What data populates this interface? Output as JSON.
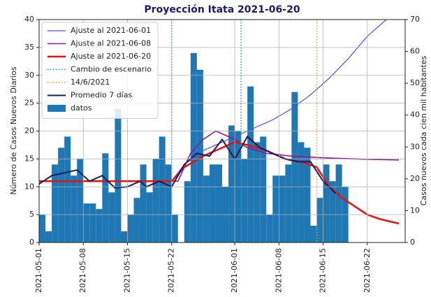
{
  "chart_data": {
    "type": "bar",
    "title": "Proyección Itata 2021-06-20",
    "y_label": "Número de Casos Nuevos Diarios",
    "y2_label": "Casos nuevos cada cien mil habitantes",
    "xlim": [
      "2021-05-01",
      "2021-06-28"
    ],
    "xticks": [
      "2021-05-01",
      "2021-05-08",
      "2021-05-15",
      "2021-05-22",
      "2021-06-01",
      "2021-06-08",
      "2021-06-15",
      "2021-06-22"
    ],
    "ylim": [
      0,
      40
    ],
    "yticks": [
      0,
      5,
      10,
      15,
      20,
      25,
      30,
      35,
      40
    ],
    "y2lim": [
      0,
      70
    ],
    "y2ticks": [
      0,
      10,
      20,
      30,
      40,
      50,
      60,
      70
    ],
    "grid": true,
    "legend": "upper left",
    "series": [
      {
        "name": "Ajuste al 2021-06-01",
        "kind": "line",
        "color": "#4c4cf0",
        "width": 1.2,
        "x": [
          "2021-05-01",
          "2021-05-22",
          "2021-05-24",
          "2021-05-27",
          "2021-05-30",
          "2021-06-01",
          "2021-06-04",
          "2021-06-07",
          "2021-06-10",
          "2021-06-13",
          "2021-06-16",
          "2021-06-19",
          "2021-06-22",
          "2021-06-25"
        ],
        "values": [
          11,
          11,
          14,
          16.5,
          18,
          19,
          20.5,
          22,
          24,
          26.5,
          29.5,
          33,
          37,
          40
        ]
      },
      {
        "name": "Ajuste al 2021-06-08",
        "kind": "line",
        "color": "#8b1a9b",
        "width": 1.6,
        "x": [
          "2021-05-01",
          "2021-05-23",
          "2021-05-25",
          "2021-05-27",
          "2021-05-29",
          "2021-06-01",
          "2021-06-03",
          "2021-06-06",
          "2021-06-10",
          "2021-06-15",
          "2021-06-20",
          "2021-06-27"
        ],
        "values": [
          11,
          11,
          16,
          18.5,
          20,
          18.5,
          17,
          16,
          15.5,
          15.2,
          15,
          14.8
        ]
      },
      {
        "name": "Ajuste al 2021-06-20",
        "kind": "line",
        "color": "#e8120c",
        "width": 2.5,
        "x": [
          "2021-05-01",
          "2021-05-22",
          "2021-05-24",
          "2021-05-27",
          "2021-05-30",
          "2021-06-01",
          "2021-06-03",
          "2021-06-06",
          "2021-06-09",
          "2021-06-12",
          "2021-06-14",
          "2021-06-16",
          "2021-06-18",
          "2021-06-20",
          "2021-06-22",
          "2021-06-24",
          "2021-06-27"
        ],
        "values": [
          11,
          11,
          13.5,
          15.5,
          17,
          18,
          17.5,
          16.5,
          15,
          14.3,
          13.5,
          10,
          8,
          6.5,
          5,
          4.2,
          3.4
        ]
      },
      {
        "name": "Cambio de escenario",
        "kind": "vline",
        "color": "#17a2a8",
        "x": [
          "2021-05-22",
          "2021-06-02"
        ]
      },
      {
        "name": "14/6/2021",
        "kind": "vline",
        "color": "#f5a033",
        "x": [
          "2021-06-14"
        ]
      },
      {
        "name": "Promedio 7 días",
        "kind": "line",
        "color": "#1b1b5e",
        "width": 2,
        "x": [
          "2021-05-01",
          "2021-05-03",
          "2021-05-05",
          "2021-05-07",
          "2021-05-09",
          "2021-05-11",
          "2021-05-13",
          "2021-05-15",
          "2021-05-17",
          "2021-05-18",
          "2021-05-20",
          "2021-05-22",
          "2021-05-24",
          "2021-05-26",
          "2021-05-28",
          "2021-05-30",
          "2021-06-01",
          "2021-06-03",
          "2021-06-05",
          "2021-06-07",
          "2021-06-09",
          "2021-06-11",
          "2021-06-13",
          "2021-06-15",
          "2021-06-17"
        ],
        "values": [
          10.5,
          12,
          12.5,
          13,
          11,
          12,
          9.8,
          10,
          11,
          10,
          11,
          10,
          14,
          16,
          15.5,
          18.5,
          15,
          19,
          17,
          16,
          15,
          14.5,
          14.5,
          11,
          8.8
        ]
      },
      {
        "name": "datos",
        "kind": "bar",
        "color": "#1f77b4",
        "x": [
          "2021-05-01",
          "2021-05-02",
          "2021-05-03",
          "2021-05-04",
          "2021-05-05",
          "2021-05-06",
          "2021-05-07",
          "2021-05-08",
          "2021-05-09",
          "2021-05-10",
          "2021-05-11",
          "2021-05-12",
          "2021-05-13",
          "2021-05-14",
          "2021-05-15",
          "2021-05-16",
          "2021-05-17",
          "2021-05-18",
          "2021-05-19",
          "2021-05-20",
          "2021-05-21",
          "2021-05-22",
          "2021-05-23",
          "2021-05-24",
          "2021-05-25",
          "2021-05-26",
          "2021-05-27",
          "2021-05-28",
          "2021-05-29",
          "2021-05-30",
          "2021-05-31",
          "2021-06-01",
          "2021-06-02",
          "2021-06-03",
          "2021-06-04",
          "2021-06-05",
          "2021-06-06",
          "2021-06-07",
          "2021-06-08",
          "2021-06-09",
          "2021-06-10",
          "2021-06-11",
          "2021-06-12",
          "2021-06-13",
          "2021-06-14",
          "2021-06-15",
          "2021-06-16",
          "2021-06-17",
          "2021-06-18"
        ],
        "values": [
          5,
          2,
          14,
          17,
          19,
          12,
          15,
          7,
          7,
          6,
          16,
          9,
          24,
          2,
          5,
          8,
          14,
          9,
          15,
          19,
          14,
          5,
          0,
          11,
          34,
          31,
          12,
          14,
          14,
          10,
          21,
          20,
          15,
          28,
          18,
          19,
          5,
          12,
          12,
          14,
          27,
          18,
          17,
          3,
          8,
          14,
          11,
          14,
          10
        ]
      }
    ]
  }
}
